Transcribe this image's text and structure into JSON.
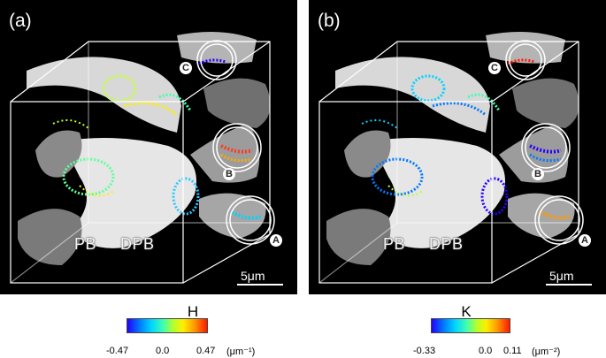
{
  "panels": [
    {
      "label": "(a)",
      "regions": [
        "PB",
        "DPB"
      ],
      "callouts": [
        "C",
        "B",
        "A"
      ],
      "scale_bar": "5μm"
    },
    {
      "label": "(b)",
      "regions": [
        "PB",
        "DPB"
      ],
      "callouts": [
        "C",
        "B",
        "A"
      ],
      "scale_bar": "5μm"
    }
  ],
  "colorbars": [
    {
      "title": "H",
      "min_label": "-0.47",
      "mid_label": "0.0",
      "max_label": "0.47",
      "unit": "(μm⁻¹)"
    },
    {
      "title": "K",
      "min_label": "-0.33",
      "mid_label": "0.0",
      "max_label": "0.11",
      "unit": "(μm⁻²)"
    }
  ],
  "colors": {
    "background": "#000000",
    "membrane": "#c8c8c8",
    "box_edges": "#ffffff",
    "colormap": [
      "#2400ff",
      "#00d4ff",
      "#b6ff2a",
      "#ffee00",
      "#ff1a00"
    ]
  }
}
